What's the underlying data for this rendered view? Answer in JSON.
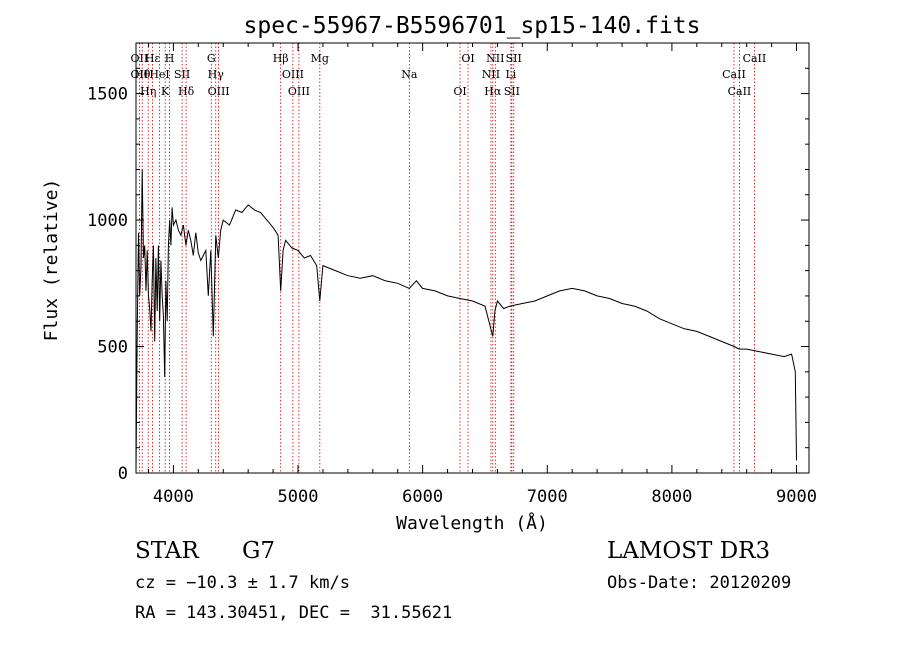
{
  "chart_data": {
    "type": "line",
    "title": "spec-55967-B5596701_sp15-140.fits",
    "xlabel": "Wavelength (Å)",
    "ylabel": "Flux (relative)",
    "xlim": [
      3700,
      9100
    ],
    "ylim": [
      0,
      1700
    ],
    "xticks": [
      4000,
      5000,
      6000,
      7000,
      8000,
      9000
    ],
    "yticks": [
      0,
      500,
      1000,
      1500
    ],
    "grid": false,
    "line_color": "#000000",
    "marker_color": "#cc0000",
    "series": [
      {
        "name": "spectrum",
        "x": [
          3700,
          3710,
          3720,
          3730,
          3740,
          3750,
          3760,
          3770,
          3780,
          3790,
          3800,
          3810,
          3820,
          3830,
          3840,
          3850,
          3860,
          3870,
          3880,
          3890,
          3900,
          3910,
          3920,
          3930,
          3940,
          3950,
          3960,
          3970,
          3980,
          3990,
          4000,
          4020,
          4040,
          4060,
          4080,
          4100,
          4120,
          4140,
          4160,
          4180,
          4200,
          4220,
          4240,
          4260,
          4280,
          4300,
          4320,
          4340,
          4360,
          4380,
          4400,
          4450,
          4500,
          4550,
          4600,
          4650,
          4700,
          4750,
          4800,
          4840,
          4861,
          4880,
          4900,
          4950,
          5000,
          5050,
          5100,
          5150,
          5175,
          5200,
          5300,
          5400,
          5500,
          5600,
          5700,
          5800,
          5893,
          5950,
          6000,
          6100,
          6200,
          6300,
          6400,
          6500,
          6563,
          6580,
          6600,
          6650,
          6700,
          6800,
          6900,
          7000,
          7100,
          7200,
          7300,
          7400,
          7500,
          7600,
          7700,
          7800,
          7900,
          8000,
          8100,
          8200,
          8300,
          8400,
          8500,
          8540,
          8600,
          8700,
          8800,
          8900,
          8960,
          8990,
          9000
        ],
        "y": [
          0,
          550,
          950,
          700,
          820,
          1200,
          850,
          900,
          720,
          880,
          700,
          650,
          560,
          760,
          900,
          520,
          850,
          640,
          900,
          600,
          840,
          700,
          620,
          380,
          760,
          600,
          900,
          1000,
          900,
          1050,
          980,
          1000,
          960,
          940,
          980,
          900,
          960,
          920,
          860,
          950,
          870,
          840,
          860,
          880,
          700,
          880,
          540,
          940,
          850,
          960,
          1000,
          980,
          1040,
          1030,
          1060,
          1040,
          1030,
          1000,
          970,
          940,
          720,
          880,
          920,
          890,
          880,
          850,
          860,
          820,
          680,
          820,
          800,
          780,
          770,
          780,
          760,
          750,
          730,
          760,
          730,
          720,
          700,
          690,
          680,
          660,
          540,
          640,
          680,
          650,
          660,
          670,
          680,
          700,
          720,
          730,
          720,
          700,
          690,
          670,
          660,
          640,
          610,
          590,
          570,
          560,
          540,
          520,
          500,
          490,
          490,
          480,
          470,
          460,
          470,
          400,
          50
        ]
      }
    ],
    "line_markers": [
      {
        "wave": 3727,
        "labels": [
          "OII",
          "OII"
        ]
      },
      {
        "wave": 3750,
        "labels": [
          "Hθ"
        ]
      },
      {
        "wave": 3798,
        "labels": [
          "Hη"
        ]
      },
      {
        "wave": 3833,
        "labels": [
          "Hε"
        ]
      },
      {
        "wave": 3889,
        "labels": [
          "HeI"
        ]
      },
      {
        "wave": 3934,
        "labels": [
          "K"
        ]
      },
      {
        "wave": 3969,
        "labels": [
          "H"
        ]
      },
      {
        "wave": 4070,
        "labels": [
          "SII"
        ]
      },
      {
        "wave": 4102,
        "labels": [
          "Hδ"
        ]
      },
      {
        "wave": 4304,
        "labels": [
          "G"
        ]
      },
      {
        "wave": 4340,
        "labels": [
          "Hγ"
        ]
      },
      {
        "wave": 4363,
        "labels": [
          "OIII"
        ]
      },
      {
        "wave": 4861,
        "labels": [
          "Hβ"
        ]
      },
      {
        "wave": 4959,
        "labels": [
          "OIII"
        ]
      },
      {
        "wave": 5007,
        "labels": [
          "OIII"
        ]
      },
      {
        "wave": 5175,
        "labels": [
          "Mg"
        ]
      },
      {
        "wave": 5893,
        "labels": [
          "Na"
        ]
      },
      {
        "wave": 6300,
        "labels": [
          "OI"
        ]
      },
      {
        "wave": 6364,
        "labels": [
          "OI"
        ]
      },
      {
        "wave": 6548,
        "labels": [
          "NII"
        ]
      },
      {
        "wave": 6563,
        "labels": [
          "Hα"
        ]
      },
      {
        "wave": 6583,
        "labels": [
          "NII"
        ]
      },
      {
        "wave": 6708,
        "labels": [
          "Li"
        ]
      },
      {
        "wave": 6716,
        "labels": [
          "SII"
        ]
      },
      {
        "wave": 6731,
        "labels": [
          "SII"
        ]
      },
      {
        "wave": 8498,
        "labels": [
          "CaII"
        ]
      },
      {
        "wave": 8542,
        "labels": [
          "CaII"
        ]
      },
      {
        "wave": 8662,
        "labels": [
          "CaII"
        ]
      }
    ]
  },
  "info": {
    "class": "STAR",
    "subclass": "G7",
    "cz": "cz = −10.3 ± 1.7 km/s",
    "coords": "RA = 143.30451, DEC =  31.55621",
    "survey": "LAMOST DR3",
    "obs_date": "Obs-Date: 20120209"
  }
}
